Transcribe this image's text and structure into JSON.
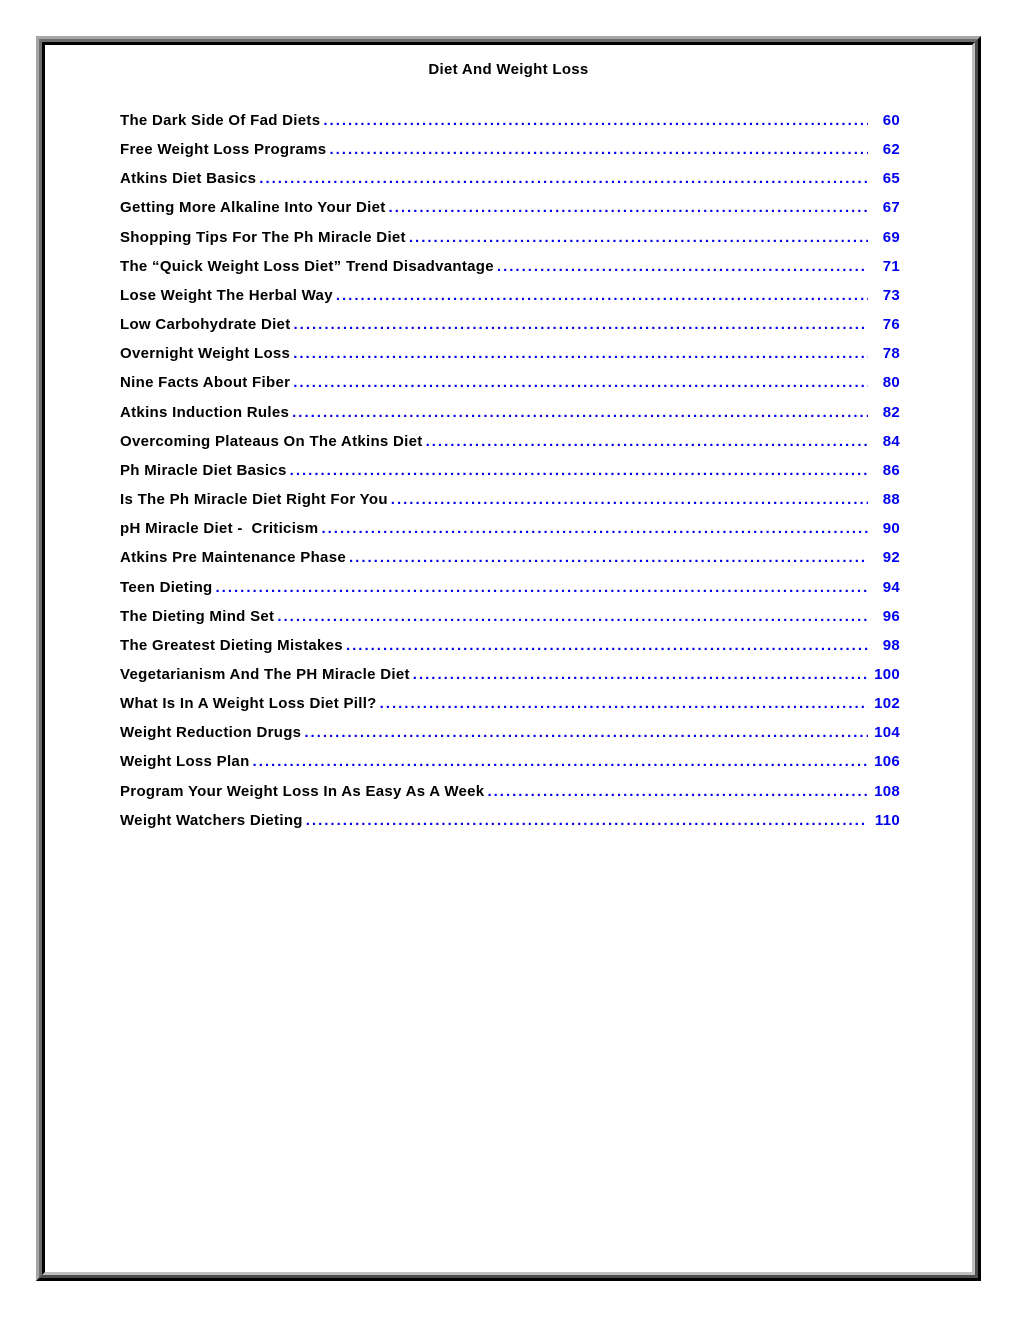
{
  "colors": {
    "link_blue": "#0000EE",
    "title_black": "#000000"
  },
  "header": {
    "title": "Diet And Weight Loss"
  },
  "toc": {
    "leader_char": ".",
    "entries": [
      {
        "title": "The Dark Side Of Fad Diets",
        "page": "60"
      },
      {
        "title": "Free Weight Loss Programs",
        "page": "62"
      },
      {
        "title": "Atkins Diet Basics",
        "page": "65"
      },
      {
        "title": "Getting More Alkaline Into Your Diet",
        "page": "67"
      },
      {
        "title": "Shopping Tips For The Ph Miracle Diet",
        "page": "69"
      },
      {
        "title": "The “Quick Weight Loss Diet” Trend Disadvantage",
        "page": "71"
      },
      {
        "title": "Lose Weight The Herbal Way",
        "page": "73"
      },
      {
        "title": "Low Carbohydrate Diet",
        "page": "76"
      },
      {
        "title": "Overnight Weight Loss",
        "page": "78"
      },
      {
        "title": "Nine Facts About Fiber",
        "page": "80"
      },
      {
        "title": "Atkins Induction Rules",
        "page": "82"
      },
      {
        "title": "Overcoming Plateaus On The Atkins Diet",
        "page": "84"
      },
      {
        "title": "Ph Miracle Diet Basics",
        "page": "86"
      },
      {
        "title": "Is The Ph Miracle Diet Right For You",
        "page": "88"
      },
      {
        "title": "pH Miracle Diet -  Criticism",
        "page": "90"
      },
      {
        "title": "Atkins Pre Maintenance Phase",
        "page": "92"
      },
      {
        "title": "Teen Dieting",
        "page": "94"
      },
      {
        "title": "The Dieting Mind Set",
        "page": "96"
      },
      {
        "title": "The Greatest Dieting Mistakes",
        "page": "98"
      },
      {
        "title": "Vegetarianism And The PH Miracle Diet",
        "page": "100"
      },
      {
        "title": "What Is In A Weight Loss Diet Pill?",
        "page": "102"
      },
      {
        "title": "Weight Reduction Drugs",
        "page": "104"
      },
      {
        "title": "Weight Loss Plan",
        "page": "106"
      },
      {
        "title": "Program Your Weight Loss In As Easy As A Week",
        "page": "108"
      },
      {
        "title": "Weight Watchers Dieting",
        "page": "110"
      }
    ]
  }
}
